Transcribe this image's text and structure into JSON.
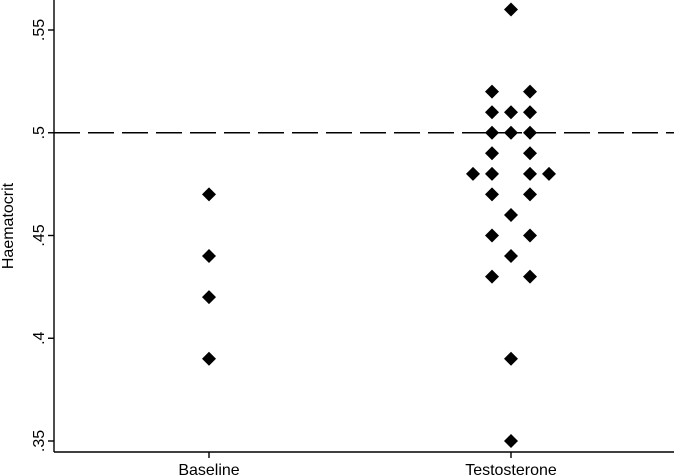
{
  "chart_data": {
    "type": "scatter",
    "title": "",
    "xlabel": "",
    "ylabel": "Haematocrit",
    "categories": [
      "Baseline",
      "Testosterone"
    ],
    "ylim": [
      0.35,
      0.56
    ],
    "yticks": [
      {
        "value": 0.35,
        "label": ".35"
      },
      {
        "value": 0.4,
        "label": ".4"
      },
      {
        "value": 0.45,
        "label": ".45"
      },
      {
        "value": 0.5,
        "label": ".5"
      },
      {
        "value": 0.55,
        "label": ".55"
      }
    ],
    "reference_line": {
      "value": 0.5,
      "style": "dashed"
    },
    "marker": "diamond",
    "marker_color": "#000000",
    "grid": false,
    "points": [
      {
        "category": "Baseline",
        "y": 0.47
      },
      {
        "category": "Baseline",
        "y": 0.44
      },
      {
        "category": "Baseline",
        "y": 0.42
      },
      {
        "category": "Baseline",
        "y": 0.39
      },
      {
        "category": "Testosterone",
        "y": 0.56
      },
      {
        "category": "Testosterone",
        "y": 0.52
      },
      {
        "category": "Testosterone",
        "y": 0.52
      },
      {
        "category": "Testosterone",
        "y": 0.51
      },
      {
        "category": "Testosterone",
        "y": 0.51
      },
      {
        "category": "Testosterone",
        "y": 0.51
      },
      {
        "category": "Testosterone",
        "y": 0.5
      },
      {
        "category": "Testosterone",
        "y": 0.5
      },
      {
        "category": "Testosterone",
        "y": 0.5
      },
      {
        "category": "Testosterone",
        "y": 0.49
      },
      {
        "category": "Testosterone",
        "y": 0.49
      },
      {
        "category": "Testosterone",
        "y": 0.48
      },
      {
        "category": "Testosterone",
        "y": 0.48
      },
      {
        "category": "Testosterone",
        "y": 0.48
      },
      {
        "category": "Testosterone",
        "y": 0.48
      },
      {
        "category": "Testosterone",
        "y": 0.47
      },
      {
        "category": "Testosterone",
        "y": 0.47
      },
      {
        "category": "Testosterone",
        "y": 0.46
      },
      {
        "category": "Testosterone",
        "y": 0.45
      },
      {
        "category": "Testosterone",
        "y": 0.45
      },
      {
        "category": "Testosterone",
        "y": 0.44
      },
      {
        "category": "Testosterone",
        "y": 0.43
      },
      {
        "category": "Testosterone",
        "y": 0.43
      },
      {
        "category": "Testosterone",
        "y": 0.39
      },
      {
        "category": "Testosterone",
        "y": 0.35
      }
    ]
  }
}
